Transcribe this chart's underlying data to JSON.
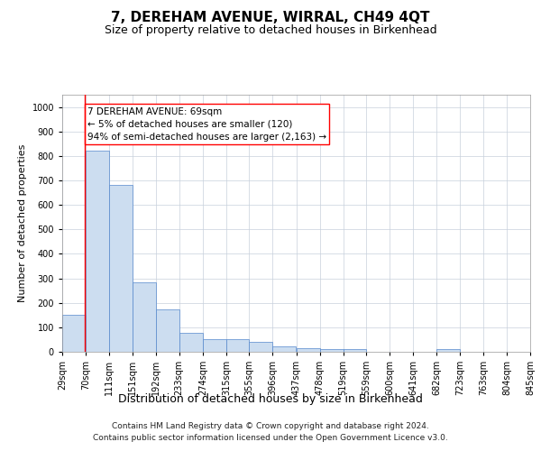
{
  "title": "7, DEREHAM AVENUE, WIRRAL, CH49 4QT",
  "subtitle": "Size of property relative to detached houses in Birkenhead",
  "xlabel": "Distribution of detached houses by size in Birkenhead",
  "ylabel": "Number of detached properties",
  "footnote1": "Contains HM Land Registry data © Crown copyright and database right 2024.",
  "footnote2": "Contains public sector information licensed under the Open Government Licence v3.0.",
  "annotation_line1": "7 DEREHAM AVENUE: 69sqm",
  "annotation_line2": "← 5% of detached houses are smaller (120)",
  "annotation_line3": "94% of semi-detached houses are larger (2,163) →",
  "bar_color": "#ccddf0",
  "bar_edge_color": "#5588cc",
  "red_line_x": 69,
  "bin_edges": [
    29,
    70,
    111,
    151,
    192,
    233,
    274,
    315,
    355,
    396,
    437,
    478,
    519,
    559,
    600,
    641,
    682,
    723,
    763,
    804,
    845
  ],
  "bar_heights": [
    150,
    820,
    680,
    285,
    175,
    78,
    52,
    52,
    40,
    22,
    14,
    10,
    10,
    0,
    0,
    0,
    10,
    0,
    0,
    0
  ],
  "ylim": [
    0,
    1050
  ],
  "yticks": [
    0,
    100,
    200,
    300,
    400,
    500,
    600,
    700,
    800,
    900,
    1000
  ],
  "tick_labels": [
    "29sqm",
    "70sqm",
    "111sqm",
    "151sqm",
    "192sqm",
    "233sqm",
    "274sqm",
    "315sqm",
    "355sqm",
    "396sqm",
    "437sqm",
    "478sqm",
    "519sqm",
    "559sqm",
    "600sqm",
    "641sqm",
    "682sqm",
    "723sqm",
    "763sqm",
    "804sqm",
    "845sqm"
  ],
  "background_color": "#ffffff",
  "grid_color": "#c8d0dc",
  "title_fontsize": 11,
  "subtitle_fontsize": 9,
  "ylabel_fontsize": 8,
  "xlabel_fontsize": 9,
  "tick_fontsize": 7,
  "annotation_fontsize": 7.5,
  "footnote_fontsize": 6.5
}
